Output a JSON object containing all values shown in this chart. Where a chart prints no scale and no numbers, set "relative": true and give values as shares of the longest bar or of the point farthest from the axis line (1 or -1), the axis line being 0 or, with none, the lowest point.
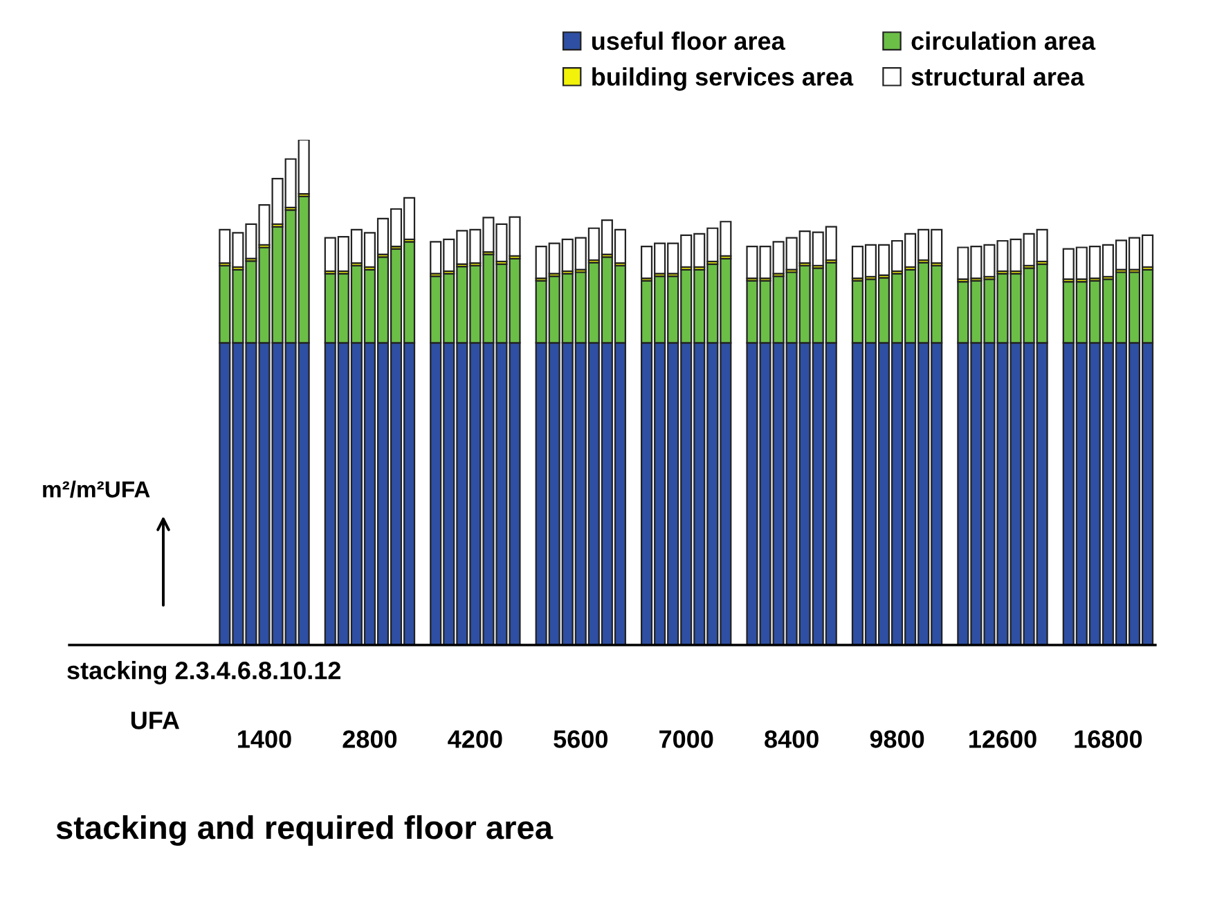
{
  "chart_data": {
    "type": "bar",
    "stacked": true,
    "relative": true,
    "title": "stacking and required floor area",
    "ylabel": "m²/m²UFA",
    "annotations": [
      "stacking 2.3.4.6.8.10.12",
      "UFA"
    ],
    "tick_labels": "x",
    "grid": false,
    "legend": "top right",
    "categories": [
      null,
      null,
      null,
      "1400",
      null,
      null,
      null,
      null,
      null,
      null,
      null,
      "2800",
      null,
      null,
      null,
      null,
      null,
      null,
      null,
      "4200",
      null,
      null,
      null,
      null,
      null,
      null,
      null,
      "5600",
      null,
      null,
      null,
      null,
      null,
      null,
      null,
      "7000",
      null,
      null,
      null,
      null,
      null,
      null,
      null,
      "8400",
      null,
      null,
      null,
      null,
      null,
      null,
      null,
      "9800",
      null,
      null,
      null,
      null,
      null,
      null,
      null,
      "12600",
      null,
      null,
      null,
      null,
      null,
      null,
      null,
      "16800",
      null,
      null,
      null
    ],
    "series": [
      {
        "name": "useful floor area",
        "color": "#2e4fa3",
        "values": [
          0.598,
          0.598,
          0.598,
          0.598,
          0.598,
          0.598,
          0.598,
          null,
          0.598,
          0.598,
          0.598,
          0.598,
          0.598,
          0.598,
          0.598,
          null,
          0.598,
          0.598,
          0.598,
          0.598,
          0.598,
          0.598,
          0.598,
          null,
          0.598,
          0.598,
          0.598,
          0.598,
          0.598,
          0.598,
          0.598,
          null,
          0.598,
          0.598,
          0.598,
          0.598,
          0.598,
          0.598,
          0.598,
          null,
          0.598,
          0.598,
          0.598,
          0.598,
          0.598,
          0.598,
          0.598,
          null,
          0.598,
          0.598,
          0.598,
          0.598,
          0.598,
          0.598,
          0.598,
          null,
          0.598,
          0.598,
          0.598,
          0.598,
          0.598,
          0.598,
          0.598,
          null,
          0.598,
          0.598,
          0.598,
          0.598,
          0.598,
          0.598,
          0.598
        ]
      },
      {
        "name": "circulation area",
        "color": "#6bbf47",
        "values": [
          0.153,
          0.145,
          0.162,
          0.189,
          0.23,
          0.263,
          0.29,
          null,
          0.137,
          0.137,
          0.153,
          0.145,
          0.17,
          0.186,
          0.2,
          null,
          0.132,
          0.137,
          0.151,
          0.153,
          0.175,
          0.156,
          0.167,
          null,
          0.123,
          0.132,
          0.137,
          0.14,
          0.159,
          0.17,
          0.153,
          null,
          0.123,
          0.132,
          0.132,
          0.145,
          0.145,
          0.156,
          0.167,
          null,
          0.123,
          0.123,
          0.132,
          0.14,
          0.153,
          0.148,
          0.159,
          null,
          0.123,
          0.126,
          0.129,
          0.137,
          0.145,
          0.159,
          0.153,
          null,
          0.121,
          0.123,
          0.126,
          0.137,
          0.137,
          0.148,
          0.156,
          null,
          0.121,
          0.121,
          0.123,
          0.126,
          0.14,
          0.14,
          0.145
        ]
      },
      {
        "name": "building services area",
        "color": "#f2f20a",
        "values": [
          0.005,
          0.005,
          0.005,
          0.005,
          0.005,
          0.005,
          0.005,
          null,
          0.005,
          0.005,
          0.005,
          0.005,
          0.005,
          0.005,
          0.005,
          null,
          0.005,
          0.005,
          0.005,
          0.005,
          0.005,
          0.005,
          0.005,
          null,
          0.005,
          0.005,
          0.005,
          0.005,
          0.005,
          0.005,
          0.005,
          null,
          0.005,
          0.005,
          0.005,
          0.005,
          0.005,
          0.005,
          0.005,
          null,
          0.005,
          0.005,
          0.005,
          0.005,
          0.005,
          0.005,
          0.005,
          null,
          0.005,
          0.005,
          0.005,
          0.005,
          0.005,
          0.005,
          0.005,
          null,
          0.005,
          0.005,
          0.005,
          0.005,
          0.005,
          0.005,
          0.005,
          null,
          0.005,
          0.005,
          0.005,
          0.005,
          0.005,
          0.005,
          0.005
        ]
      },
      {
        "name": "structural area",
        "color": "#ffffff",
        "values": [
          0.066,
          0.068,
          0.068,
          0.079,
          0.09,
          0.096,
          0.107,
          null,
          0.066,
          0.068,
          0.066,
          0.068,
          0.071,
          0.074,
          0.082,
          null,
          0.063,
          0.063,
          0.066,
          0.066,
          0.068,
          0.074,
          0.077,
          null,
          0.063,
          0.06,
          0.063,
          0.063,
          0.063,
          0.068,
          0.066,
          null,
          0.063,
          0.06,
          0.06,
          0.063,
          0.066,
          0.066,
          0.068,
          null,
          0.063,
          0.063,
          0.063,
          0.063,
          0.063,
          0.066,
          0.066,
          null,
          0.063,
          0.063,
          0.06,
          0.06,
          0.066,
          0.06,
          0.066,
          null,
          0.063,
          0.063,
          0.063,
          0.06,
          0.063,
          0.063,
          0.063,
          null,
          0.06,
          0.063,
          0.063,
          0.063,
          0.058,
          0.063,
          0.063
        ]
      }
    ]
  }
}
